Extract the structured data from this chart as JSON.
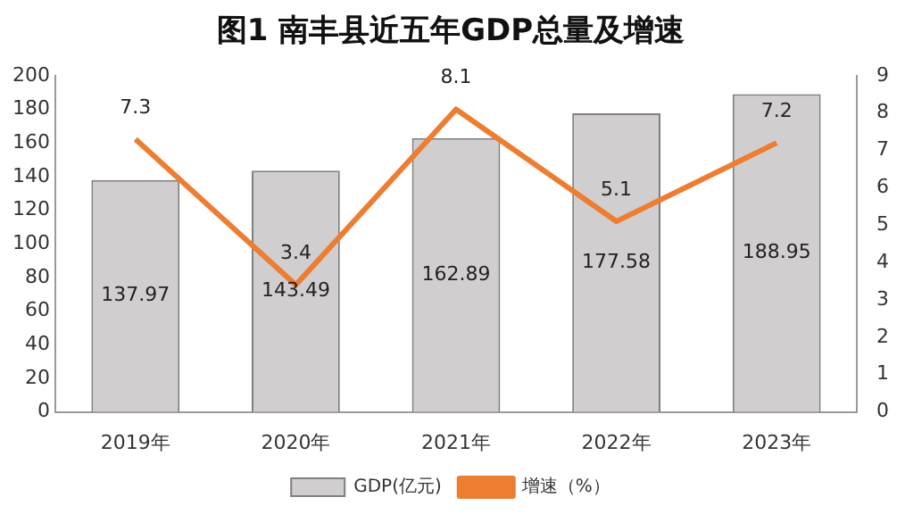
{
  "chart_data": {
    "type": "bar",
    "title": "图1 南丰县近五年GDP总量及增速",
    "categories": [
      "2019年",
      "2020年",
      "2021年",
      "2022年",
      "2023年"
    ],
    "series": [
      {
        "name": "GDP(亿元)",
        "color": "#d0cece",
        "values": [
          137.97,
          143.49,
          162.89,
          177.58,
          188.95
        ]
      },
      {
        "name": "增速（%）",
        "type": "line",
        "axis": "y2",
        "color": "#ed7d31",
        "values": [
          7.3,
          3.4,
          8.1,
          5.1,
          7.2
        ]
      }
    ],
    "ylim": [
      0,
      200
    ],
    "yticks": [
      0,
      20,
      40,
      60,
      80,
      100,
      120,
      140,
      160,
      180,
      200
    ],
    "y2lim": [
      0,
      9
    ],
    "y2ticks": [
      0,
      1,
      2,
      3,
      4,
      5,
      6,
      7,
      8,
      9
    ],
    "grid": false,
    "legend": "bottom",
    "marker": "none",
    "line_style": "solid",
    "data_labels": true
  }
}
